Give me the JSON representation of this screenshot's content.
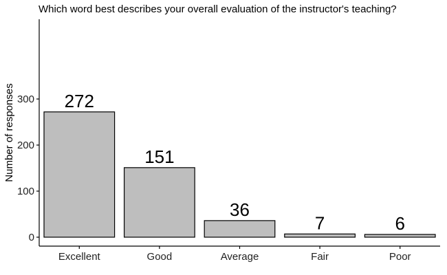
{
  "chart_data": {
    "type": "bar",
    "title": "Which word best describes your overall evaluation of the instructor's teaching?",
    "xlabel": "",
    "ylabel": "Number of responses",
    "categories": [
      "Excellent",
      "Good",
      "Average",
      "Fair",
      "Poor"
    ],
    "values": [
      272,
      151,
      36,
      7,
      6
    ],
    "data_labels": [
      "272",
      "151",
      "36",
      "7",
      "6"
    ],
    "ylim": [
      0,
      315
    ],
    "yticks": [
      0,
      100,
      200,
      300
    ],
    "grid": false,
    "legend": "none",
    "bar_color": "#bebebe",
    "bar_edge_color": "#000000"
  }
}
